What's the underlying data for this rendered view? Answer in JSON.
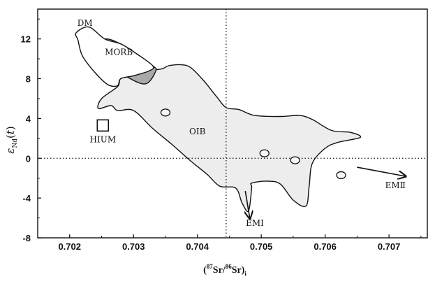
{
  "chart_data": {
    "type": "scatter",
    "title": "",
    "xlabel": "(87Sr/86Sr)i",
    "ylabel": "εNd(t)",
    "xlim": [
      0.7015,
      0.7076
    ],
    "ylim": [
      -8,
      15
    ],
    "x_ticks": [
      0.702,
      0.703,
      0.704,
      0.705,
      0.706,
      0.707
    ],
    "x_tick_labels": [
      "0.702",
      "0.703",
      "0.704",
      "0.705",
      "0.706",
      "0.707"
    ],
    "y_ticks": [
      -8,
      -4,
      0,
      4,
      8,
      12
    ],
    "y_tick_labels": [
      "-8",
      "-4",
      "0",
      "4",
      "8",
      "12"
    ],
    "reference_lines": {
      "x": 0.70445,
      "y": 0
    },
    "regions": [
      {
        "name": "OIB",
        "fill": "#ededed",
        "polygon": [
          [
            0.70325,
            8.8
          ],
          [
            0.70345,
            9.0
          ],
          [
            0.70355,
            9.3
          ],
          [
            0.70375,
            9.4
          ],
          [
            0.7039,
            9.1
          ],
          [
            0.7041,
            7.8
          ],
          [
            0.7043,
            6.2
          ],
          [
            0.70445,
            5.1
          ],
          [
            0.70465,
            4.9
          ],
          [
            0.7049,
            4.3
          ],
          [
            0.7053,
            4.2
          ],
          [
            0.7056,
            4.3
          ],
          [
            0.7058,
            3.9
          ],
          [
            0.7061,
            2.8
          ],
          [
            0.7064,
            2.6
          ],
          [
            0.70655,
            2.1
          ],
          [
            0.7062,
            1.6
          ],
          [
            0.706,
            1.0
          ],
          [
            0.7058,
            -0.5
          ],
          [
            0.70575,
            -2.8
          ],
          [
            0.7057,
            -4.8
          ],
          [
            0.7055,
            -4.2
          ],
          [
            0.7053,
            -2.6
          ],
          [
            0.7051,
            -2.3
          ],
          [
            0.70485,
            -2.5
          ],
          [
            0.70485,
            -3.0
          ],
          [
            0.7048,
            -5.3
          ],
          [
            0.7047,
            -4.5
          ],
          [
            0.7046,
            -3.0
          ],
          [
            0.70435,
            -2.8
          ],
          [
            0.70415,
            -1.6
          ],
          [
            0.7039,
            -0.3
          ],
          [
            0.7036,
            1.4
          ],
          [
            0.7033,
            3.0
          ],
          [
            0.703,
            4.8
          ],
          [
            0.70275,
            4.8
          ],
          [
            0.70265,
            5.3
          ],
          [
            0.70245,
            5.0
          ],
          [
            0.7025,
            6.0
          ],
          [
            0.70275,
            7.2
          ],
          [
            0.7028,
            8.0
          ],
          [
            0.703,
            8.3
          ]
        ]
      },
      {
        "name": "MORB",
        "fill": "#a9a9a9",
        "polygon": [
          [
            0.70255,
            12.0
          ],
          [
            0.7024,
            11.0
          ],
          [
            0.7026,
            9.5
          ],
          [
            0.70295,
            8.0
          ],
          [
            0.7032,
            7.5
          ],
          [
            0.70335,
            8.8
          ],
          [
            0.7033,
            9.3
          ],
          [
            0.70305,
            10.5
          ],
          [
            0.7028,
            11.5
          ]
        ]
      },
      {
        "name": "DM",
        "fill": "#ffffff",
        "polygon": [
          [
            0.70213,
            11.9
          ],
          [
            0.7021,
            12.6
          ],
          [
            0.7023,
            13.2
          ],
          [
            0.70255,
            12.0
          ],
          [
            0.7028,
            11.5
          ],
          [
            0.70305,
            10.5
          ],
          [
            0.7033,
            9.3
          ],
          [
            0.70325,
            8.8
          ],
          [
            0.703,
            8.3
          ],
          [
            0.7028,
            8.0
          ],
          [
            0.70275,
            7.3
          ],
          [
            0.7026,
            7.4
          ],
          [
            0.7024,
            8.6
          ],
          [
            0.7022,
            10.3
          ]
        ]
      }
    ],
    "points": [
      {
        "x": 0.7035,
        "y": 4.6
      },
      {
        "x": 0.70505,
        "y": 0.5
      },
      {
        "x": 0.70553,
        "y": -0.2
      },
      {
        "x": 0.70625,
        "y": -1.7
      }
    ],
    "box_marker": {
      "x": 0.70252,
      "y": 3.3,
      "label": "HIUM"
    },
    "labels": [
      {
        "text": "DM",
        "x": 0.70212,
        "y": 13.3
      },
      {
        "text": "MORB",
        "x": 0.70277,
        "y": 10.4
      },
      {
        "text": "OIB",
        "x": 0.704,
        "y": 2.4
      },
      {
        "text": "HIUM",
        "x": 0.70252,
        "y": 1.6
      },
      {
        "text": "EMⅠ",
        "x": 0.7049,
        "y": -6.8
      },
      {
        "text": "EMⅡ",
        "x": 0.7071,
        "y": -3.0
      }
    ],
    "arrows": [
      {
        "to": "EMⅠ",
        "from": [
          0.70475,
          -3.3
        ],
        "to_point": [
          0.70482,
          -6.0
        ]
      },
      {
        "to": "EMⅡ",
        "from": [
          0.7065,
          -0.9
        ],
        "to_point": [
          0.70725,
          -1.8
        ]
      }
    ]
  }
}
